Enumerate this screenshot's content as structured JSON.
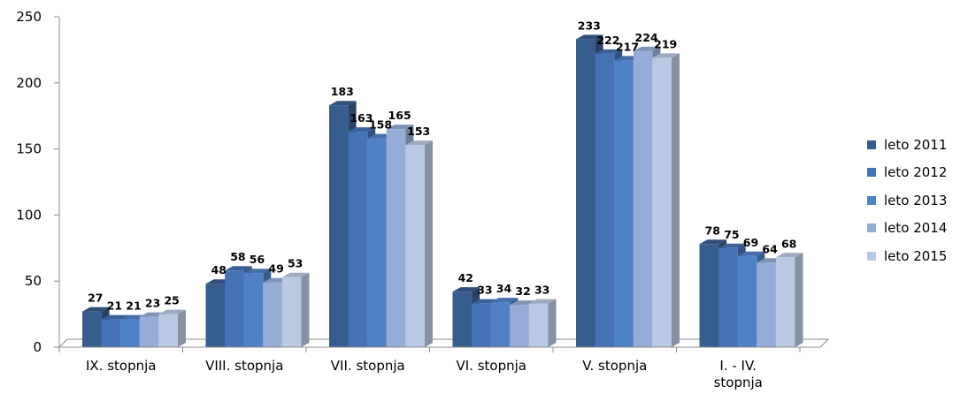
{
  "chart_data": {
    "type": "bar",
    "categories": [
      "IX. stopnja",
      "VIII. stopnja",
      "VII. stopnja",
      "VI. stopnja",
      "V. stopnja",
      "I. - IV. stopnja"
    ],
    "series": [
      {
        "name": "leto 2011",
        "color": "#375c8e",
        "values": [
          27,
          48,
          183,
          42,
          233,
          78
        ]
      },
      {
        "name": "leto 2012",
        "color": "#4472b4",
        "values": [
          21,
          58,
          163,
          33,
          222,
          75
        ]
      },
      {
        "name": "leto 2013",
        "color": "#4f81c7",
        "values": [
          21,
          56,
          158,
          34,
          217,
          69
        ]
      },
      {
        "name": "leto 2014",
        "color": "#95add6",
        "values": [
          23,
          49,
          165,
          32,
          224,
          64
        ]
      },
      {
        "name": "leto 2015",
        "color": "#b9c8e3",
        "values": [
          25,
          53,
          153,
          33,
          219,
          68
        ]
      }
    ],
    "y_ticks": [
      "0",
      "50",
      "100",
      "150",
      "200",
      "250"
    ],
    "ylim": [
      0,
      250
    ],
    "grid": false,
    "legend_position": "right"
  }
}
